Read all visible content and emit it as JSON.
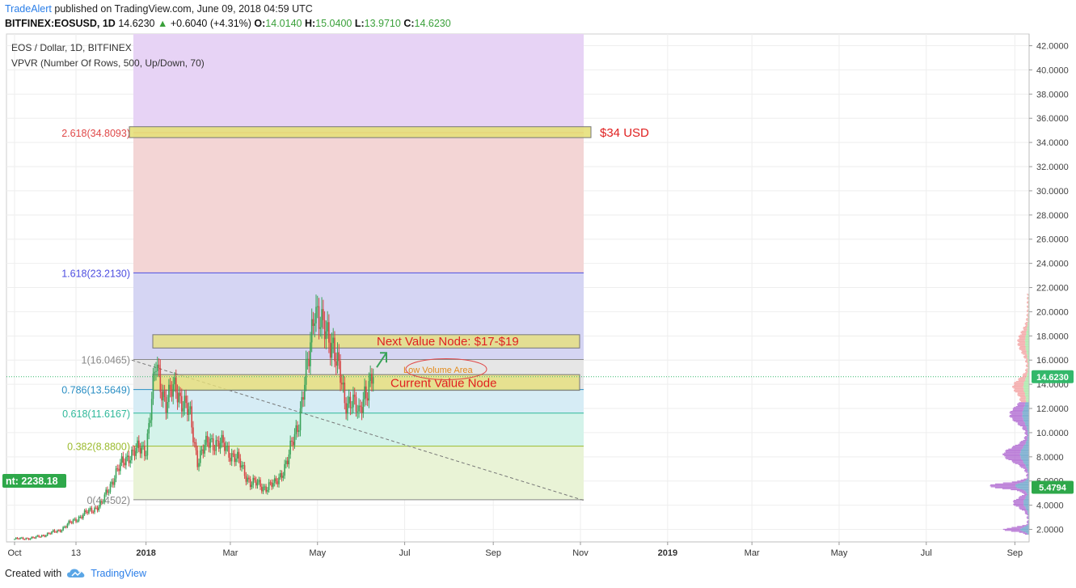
{
  "header": {
    "author": "TradeAlert",
    "published_text": " published on TradingView.com, June 09, 2018 04:59 UTC",
    "symbol": "BITFINEX:EOSUSD, 1D",
    "last": "14.6230",
    "change": "+0.6040 (+4.31%)",
    "open_label": "O:",
    "open": "14.0140",
    "high_label": "H:",
    "high": "15.0400",
    "low_label": "L:",
    "low": "13.9710",
    "close_label": "C:",
    "close": "14.6230"
  },
  "footer": {
    "created_with": "Created with",
    "brand": "TradingView"
  },
  "chart_data": {
    "type": "line",
    "title": "EOS / Dollar, 1D, BITFINEX",
    "subtitle": "VPVR (Number Of Rows, 500, Up/Down, 70)",
    "y_axis": {
      "ticks": [
        "2.0000",
        "4.0000",
        "6.0000",
        "8.0000",
        "10.0000",
        "12.0000",
        "14.0000",
        "16.0000",
        "18.0000",
        "20.0000",
        "22.0000",
        "24.0000",
        "26.0000",
        "28.0000",
        "30.0000",
        "32.0000",
        "34.0000",
        "36.0000",
        "38.0000",
        "40.0000",
        "42.0000"
      ],
      "ylim": [
        1.0,
        43.0
      ]
    },
    "x_axis": {
      "ticks": [
        "Oct",
        "13",
        "2018",
        "Mar",
        "May",
        "Jul",
        "Sep",
        "Nov",
        "2019",
        "Mar",
        "May",
        "Jul",
        "Sep"
      ]
    },
    "x": [
      "2017-10-01",
      "2017-10-15",
      "2017-11-01",
      "2017-11-15",
      "2017-12-01",
      "2017-12-10",
      "2017-12-20",
      "2018-01-01",
      "2018-01-08",
      "2018-01-15",
      "2018-01-22",
      "2018-02-01",
      "2018-02-06",
      "2018-02-15",
      "2018-02-25",
      "2018-03-05",
      "2018-03-15",
      "2018-03-25",
      "2018-04-01",
      "2018-04-10",
      "2018-04-18",
      "2018-04-25",
      "2018-04-29",
      "2018-05-05",
      "2018-05-12",
      "2018-05-20",
      "2018-05-25",
      "2018-05-30",
      "2018-06-03",
      "2018-06-09"
    ],
    "series": [
      {
        "values": [
          1.2,
          1.3,
          1.9,
          3.0,
          4.1,
          6.5,
          8.2,
          8.8,
          15.5,
          12.5,
          13.8,
          11.2,
          7.8,
          9.4,
          8.8,
          7.9,
          5.9,
          5.5,
          5.7,
          7.6,
          11.2,
          16.0,
          21.0,
          18.2,
          17.6,
          12.4,
          13.0,
          11.2,
          13.5,
          14.6
        ]
      }
    ],
    "fibonacci": [
      {
        "label": "0(4.4502)",
        "value": 4.4502,
        "color": "#888888"
      },
      {
        "label": "0.382(8.8800)",
        "value": 8.88,
        "color": "#9bbb2e"
      },
      {
        "label": "0.618(11.6167)",
        "value": 11.6167,
        "color": "#2fb89a"
      },
      {
        "label": "0.786(13.5649)",
        "value": 13.5649,
        "color": "#2b8fc4"
      },
      {
        "label": "1(16.0465)",
        "value": 16.0465,
        "color": "#888888"
      },
      {
        "label": "1.618(23.2130)",
        "value": 23.213,
        "color": "#4d4de0"
      },
      {
        "label": "2.618(34.8093)",
        "value": 34.8093,
        "color": "#e04848"
      }
    ],
    "annotations": [
      {
        "text": "$34 USD",
        "color": "#e02020"
      },
      {
        "text": "Next Value Node: $17-$19",
        "color": "#e02020"
      },
      {
        "text": "Low Volume Area",
        "color": "#e38a1a"
      },
      {
        "text": "Current Value Node",
        "color": "#e02020"
      }
    ],
    "price_badges": [
      {
        "text": "14.6230",
        "value": 14.623,
        "color": "#33b86b"
      },
      {
        "text": "5.4794",
        "value": 5.4794,
        "color": "#2ea84a"
      }
    ],
    "left_badge": {
      "text": "nt: 2238.18",
      "color": "#2ea84a"
    },
    "colors": {
      "up": "#3aa35a",
      "down": "#d64545",
      "zone_purple": "#e7d3f5",
      "zone_red": "#f3d5d5",
      "zone_blue": "#d5d5f3",
      "zone_grey": "#e6e6e6",
      "zone_cyan": "#d6ecf5",
      "zone_teal": "#d4f3ea",
      "zone_lime": "#e9f3d6",
      "node_fill": "#e6e07a"
    }
  }
}
